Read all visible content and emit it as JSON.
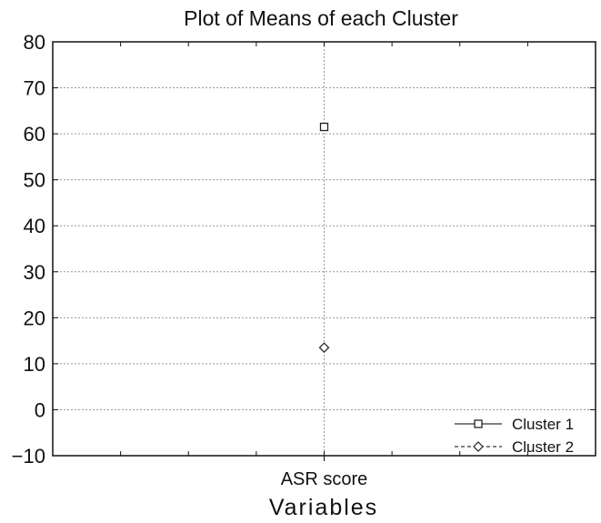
{
  "chart_data": {
    "type": "scatter",
    "title": "Plot of Means of each Cluster",
    "xlabel": "Variables",
    "ylabel": "",
    "categories": [
      "ASR score"
    ],
    "ylim": [
      -10,
      80
    ],
    "yticks": [
      80,
      70,
      60,
      50,
      40,
      30,
      20,
      10,
      0,
      -10
    ],
    "ytick_labels": [
      "80",
      "70",
      "60",
      "50",
      "40",
      "30",
      "20",
      "10",
      "0",
      "−10"
    ],
    "grid": true,
    "legend_position": "bottom-right",
    "series": [
      {
        "name": "Cluster 1",
        "marker": "square",
        "line": "solid",
        "values": [
          61.5
        ]
      },
      {
        "name": "Cluster 2",
        "marker": "diamond",
        "line": "dashed",
        "values": [
          13.5
        ]
      }
    ]
  }
}
